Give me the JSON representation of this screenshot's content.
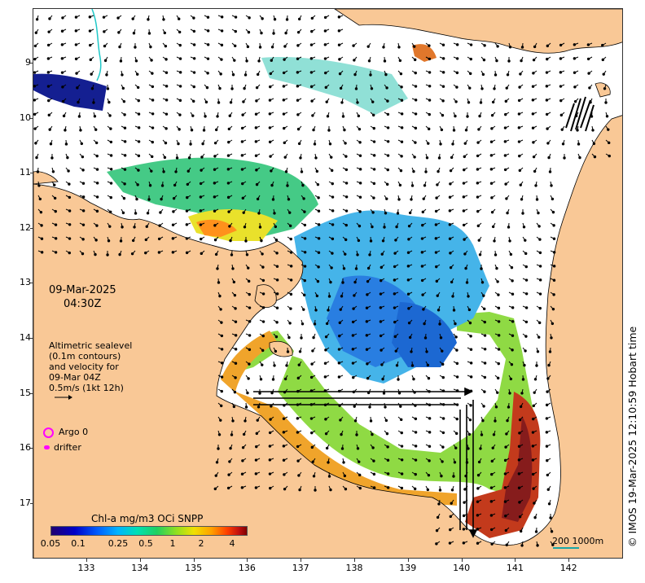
{
  "map": {
    "date_label": "09-Mar-2025",
    "time_label": "04:30Z",
    "sealevel_caption": [
      "Altimetric sealevel",
      "(0.1m contours)",
      "and velocity for",
      "09-Mar 04Z",
      "0.5m/s (1kt 12h)"
    ],
    "legend": {
      "argo_label": "Argo 0",
      "drifter_label": "drifter"
    },
    "colorbar": {
      "title": "Chl-a mg/m3 OCi SNPP",
      "ticks": [
        "0.05",
        "0.1",
        "0.25",
        "0.5",
        "1",
        "2",
        "4"
      ]
    },
    "scale_bar_label": "200  1000m",
    "timestamp": "© IMOS 19-Mar-2025 12:10:59 Hobart time",
    "lat_ticks": [
      "9",
      "10",
      "11",
      "12",
      "13",
      "14",
      "15",
      "16",
      "17"
    ],
    "lon_ticks": [
      "133",
      "134",
      "135",
      "136",
      "137",
      "138",
      "139",
      "140",
      "141",
      "142"
    ],
    "colors": {
      "land": "#f9c896",
      "ocean": "#ffffff",
      "vector": "#000000",
      "argo": "#ff00ff",
      "scale": "#1aa6a6"
    }
  }
}
